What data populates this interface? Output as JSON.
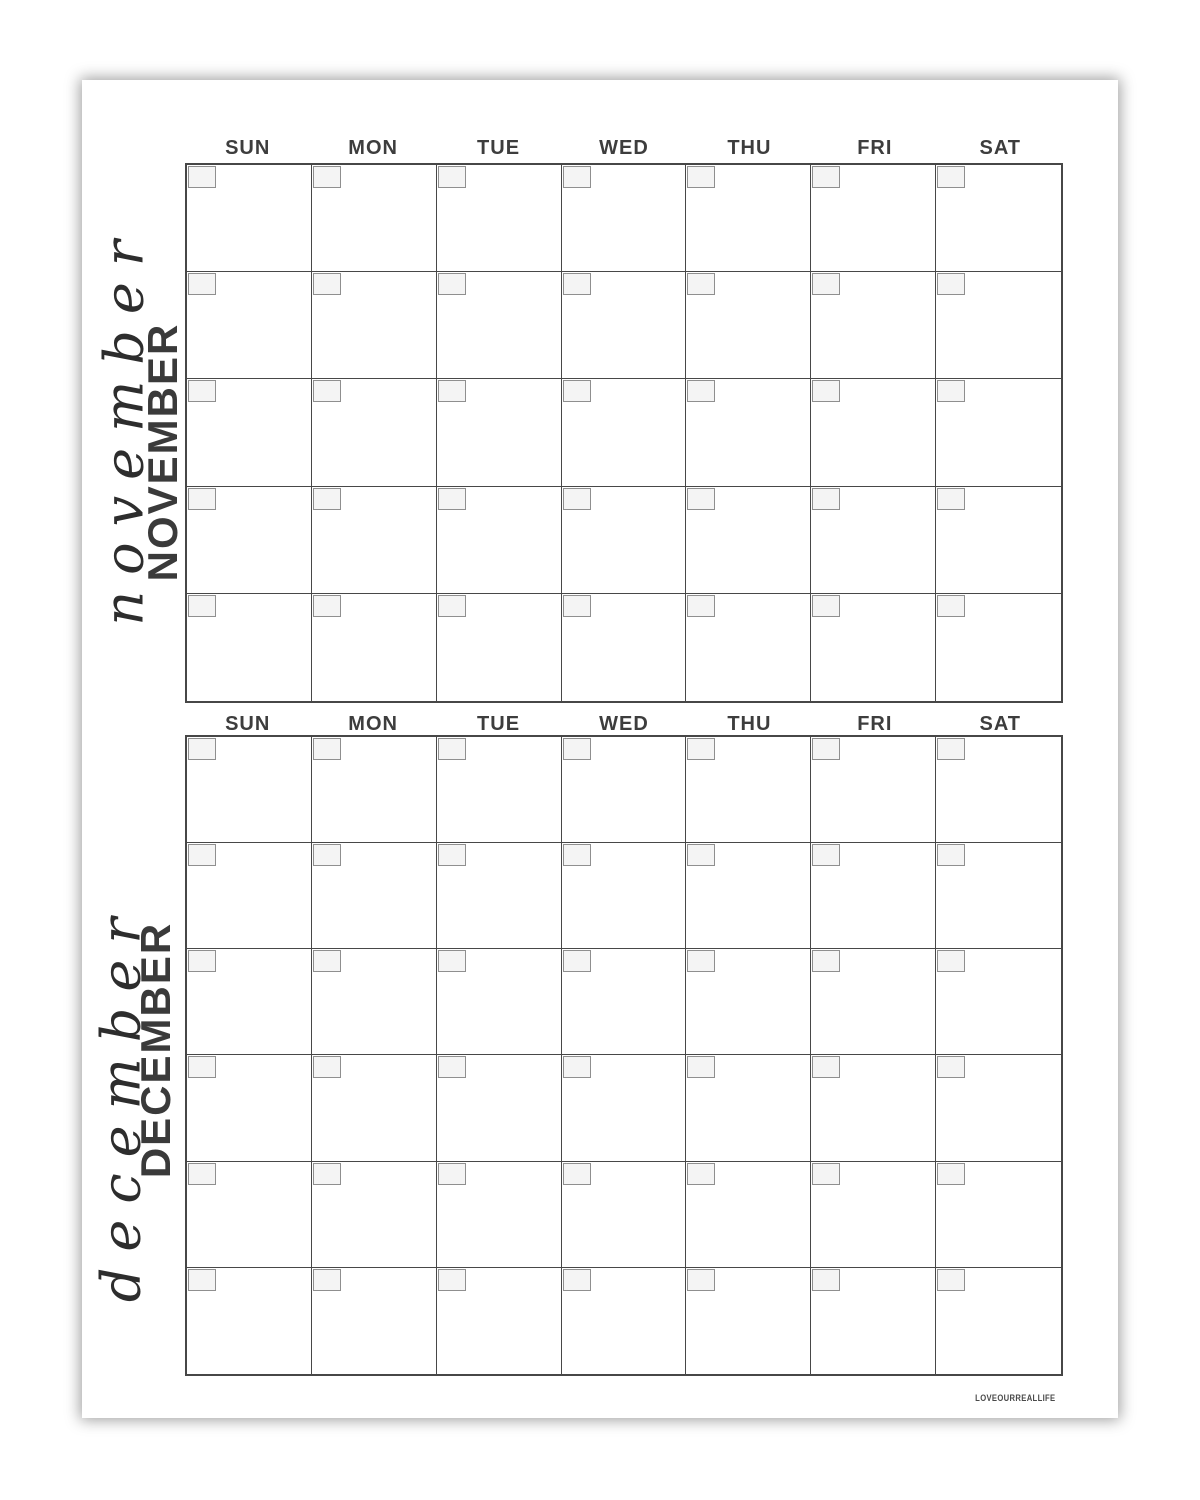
{
  "weekday_headers": [
    "SUN",
    "MON",
    "TUE",
    "WED",
    "THU",
    "FRI",
    "SAT"
  ],
  "months": [
    {
      "name": "NOVEMBER",
      "script_name": "november",
      "weeks": 5
    },
    {
      "name": "DECEMBER",
      "script_name": "december",
      "weeks": 6
    }
  ],
  "watermark": "LOVEOURREALLIFE",
  "colors": {
    "page_bg": "#ffffff",
    "grid_line": "#474747",
    "header_text": "#3d3d3d",
    "month_text": "#3a3a3a",
    "script_text": "#2d2d2d",
    "daybox_fill": "#f4f4f4",
    "daybox_border": "#8f8f8f"
  }
}
